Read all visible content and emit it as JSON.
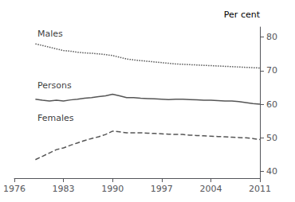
{
  "chart_data": {
    "type": "line",
    "ylabel_right": "Per cent",
    "xlim": [
      1976,
      2011
    ],
    "ylim": [
      38,
      83
    ],
    "yticks": [
      40,
      50,
      60,
      70,
      80
    ],
    "xticks": [
      1976,
      1983,
      1990,
      1997,
      2004,
      2011
    ],
    "grid": false,
    "x": [
      1979,
      1980,
      1981,
      1982,
      1983,
      1984,
      1985,
      1986,
      1987,
      1988,
      1989,
      1990,
      1991,
      1992,
      1993,
      1994,
      1995,
      1996,
      1997,
      1998,
      1999,
      2000,
      2001,
      2002,
      2003,
      2004,
      2005,
      2006,
      2007,
      2008,
      2009,
      2010,
      2011
    ],
    "series": [
      {
        "name": "Males",
        "color": "#555555",
        "line_style": "dotted",
        "values": [
          78.0,
          77.5,
          77.0,
          76.5,
          76.0,
          75.8,
          75.5,
          75.3,
          75.2,
          75.0,
          74.8,
          74.5,
          74.0,
          73.5,
          73.2,
          73.0,
          72.8,
          72.6,
          72.4,
          72.2,
          72.0,
          71.9,
          71.8,
          71.7,
          71.6,
          71.5,
          71.4,
          71.3,
          71.2,
          71.1,
          71.0,
          70.9,
          70.8
        ]
      },
      {
        "name": "Persons",
        "color": "#555555",
        "line_style": "solid",
        "values": [
          61.5,
          61.2,
          61.0,
          61.2,
          61.0,
          61.3,
          61.5,
          61.8,
          62.0,
          62.3,
          62.5,
          63.0,
          62.5,
          62.0,
          62.0,
          61.8,
          61.7,
          61.6,
          61.5,
          61.4,
          61.5,
          61.5,
          61.4,
          61.3,
          61.2,
          61.2,
          61.1,
          61.0,
          61.0,
          60.8,
          60.5,
          60.2,
          60.0
        ]
      },
      {
        "name": "Females",
        "color": "#555555",
        "line_style": "dashed",
        "values": [
          43.5,
          44.5,
          45.5,
          46.5,
          47.0,
          47.8,
          48.5,
          49.2,
          49.8,
          50.3,
          51.0,
          52.0,
          51.8,
          51.5,
          51.5,
          51.5,
          51.4,
          51.3,
          51.2,
          51.1,
          51.0,
          51.0,
          50.8,
          50.7,
          50.6,
          50.5,
          50.4,
          50.3,
          50.2,
          50.1,
          50.0,
          49.8,
          49.5
        ]
      }
    ],
    "annotations": [
      {
        "text": "Males",
        "x": 1979.3,
        "y": 79.8
      },
      {
        "text": "Persons",
        "x": 1979.3,
        "y": 64.3
      },
      {
        "text": "Females",
        "x": 1979.3,
        "y": 54.5
      }
    ]
  }
}
